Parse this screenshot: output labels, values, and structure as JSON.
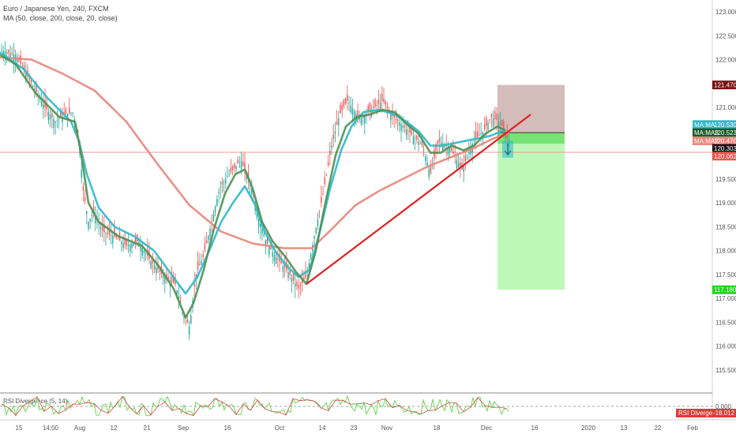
{
  "header": {
    "title": "Euro / Japanese Yen, 240, FXCM",
    "indicator": "MA (50, close, 200, close, 20, close)"
  },
  "rsi": {
    "label": "RSI Divergence (5, 14)",
    "tick_label": "0.000",
    "badge_label": "RSI Divergence",
    "badge_value": "-18.012"
  },
  "colors": {
    "ma50": "#2eb8c9",
    "ma200": "#e8867a",
    "ma20": "#4e8f52",
    "trendline": "#e0201f",
    "stop_zone": "#b88f8c",
    "target_zone": "#a8f5a0",
    "rsi_line": "#6fd65a",
    "rsi_line_down": "#d64a4a"
  },
  "chart_data": {
    "type": "line",
    "symbol": "EURJPY",
    "timeframe": "240",
    "y_axis": {
      "range": [
        115.3,
        123.15
      ],
      "ticks": [
        "123.000",
        "122.500",
        "122.000",
        "121.500",
        "121.000",
        "120.500",
        "120.000",
        "119.500",
        "119.000",
        "118.500",
        "118.000",
        "117.500",
        "117.000",
        "116.500",
        "116.000",
        "115.500"
      ]
    },
    "x_axis": {
      "ticks": [
        "15",
        "14:00",
        "Aug",
        "12",
        "21",
        "Sep",
        "16",
        "Oct",
        "14",
        "23",
        "Nov",
        "18",
        "Dec",
        "16",
        "2020",
        "13",
        "22",
        "Feb"
      ]
    },
    "price_path": [
      [
        0,
        122.2
      ],
      [
        20,
        122.1
      ],
      [
        40,
        121.5
      ],
      [
        55,
        121.05
      ],
      [
        70,
        120.7
      ],
      [
        82,
        120.85
      ],
      [
        92,
        120.9
      ],
      [
        100,
        120.4
      ],
      [
        105,
        119.3
      ],
      [
        112,
        118.6
      ],
      [
        118,
        118.8
      ],
      [
        130,
        118.4
      ],
      [
        145,
        118.3
      ],
      [
        160,
        118.1
      ],
      [
        175,
        118.2
      ],
      [
        190,
        117.8
      ],
      [
        205,
        117.5
      ],
      [
        222,
        117.3
      ],
      [
        232,
        116.7
      ],
      [
        240,
        116.4
      ],
      [
        248,
        117.5
      ],
      [
        258,
        117.9
      ],
      [
        268,
        118.6
      ],
      [
        278,
        119.3
      ],
      [
        290,
        119.6
      ],
      [
        305,
        119.9
      ],
      [
        318,
        119.35
      ],
      [
        328,
        118.65
      ],
      [
        338,
        118.15
      ],
      [
        350,
        117.85
      ],
      [
        365,
        117.55
      ],
      [
        378,
        117.2
      ],
      [
        388,
        117.45
      ],
      [
        398,
        118.3
      ],
      [
        408,
        119.1
      ],
      [
        420,
        120.2
      ],
      [
        430,
        120.85
      ],
      [
        440,
        121.15
      ],
      [
        455,
        120.75
      ],
      [
        470,
        120.95
      ],
      [
        485,
        121.15
      ],
      [
        495,
        120.85
      ],
      [
        505,
        120.7
      ],
      [
        520,
        120.45
      ],
      [
        535,
        120.2
      ],
      [
        545,
        119.6
      ],
      [
        555,
        120.3
      ],
      [
        570,
        120.15
      ],
      [
        585,
        119.7
      ],
      [
        600,
        120.3
      ],
      [
        612,
        120.5
      ],
      [
        622,
        120.8
      ],
      [
        632,
        120.7
      ],
      [
        640,
        120.5
      ],
      [
        645,
        120.2
      ]
    ],
    "series": [
      {
        "name": "MA:MA",
        "label": "120.530",
        "values": [
          [
            0,
            122.15
          ],
          [
            30,
            121.8
          ],
          [
            60,
            121.2
          ],
          [
            90,
            120.7
          ],
          [
            100,
            120.3
          ],
          [
            110,
            119.6
          ],
          [
            125,
            118.9
          ],
          [
            145,
            118.5
          ],
          [
            170,
            118.3
          ],
          [
            195,
            118.0
          ],
          [
            215,
            117.55
          ],
          [
            235,
            117.1
          ],
          [
            250,
            117.45
          ],
          [
            265,
            118.0
          ],
          [
            280,
            118.6
          ],
          [
            295,
            119.0
          ],
          [
            310,
            119.35
          ],
          [
            322,
            119.0
          ],
          [
            335,
            118.4
          ],
          [
            350,
            117.95
          ],
          [
            365,
            117.65
          ],
          [
            378,
            117.45
          ],
          [
            392,
            117.6
          ],
          [
            405,
            118.4
          ],
          [
            418,
            119.3
          ],
          [
            432,
            120.1
          ],
          [
            445,
            120.6
          ],
          [
            460,
            120.9
          ],
          [
            480,
            120.95
          ],
          [
            500,
            120.85
          ],
          [
            515,
            120.7
          ],
          [
            530,
            120.5
          ],
          [
            545,
            120.2
          ],
          [
            560,
            120.2
          ],
          [
            575,
            120.25
          ],
          [
            590,
            120.3
          ],
          [
            605,
            120.35
          ],
          [
            620,
            120.4
          ],
          [
            640,
            120.53
          ]
        ]
      },
      {
        "name": "MA:MA3",
        "label": "120.523",
        "values": [
          [
            0,
            122.1
          ],
          [
            20,
            121.9
          ],
          [
            45,
            121.3
          ],
          [
            75,
            120.8
          ],
          [
            95,
            120.7
          ],
          [
            103,
            120.0
          ],
          [
            112,
            119.0
          ],
          [
            125,
            118.6
          ],
          [
            150,
            118.3
          ],
          [
            180,
            118.1
          ],
          [
            200,
            117.7
          ],
          [
            220,
            117.2
          ],
          [
            235,
            116.6
          ],
          [
            245,
            116.9
          ],
          [
            258,
            117.6
          ],
          [
            270,
            118.4
          ],
          [
            285,
            119.2
          ],
          [
            298,
            119.6
          ],
          [
            310,
            119.7
          ],
          [
            320,
            119.3
          ],
          [
            332,
            118.6
          ],
          [
            345,
            118.2
          ],
          [
            360,
            117.9
          ],
          [
            375,
            117.55
          ],
          [
            388,
            117.3
          ],
          [
            400,
            118.0
          ],
          [
            412,
            119.0
          ],
          [
            425,
            120.0
          ],
          [
            438,
            120.6
          ],
          [
            452,
            120.8
          ],
          [
            468,
            120.85
          ],
          [
            485,
            120.95
          ],
          [
            500,
            120.9
          ],
          [
            515,
            120.65
          ],
          [
            530,
            120.45
          ],
          [
            545,
            120.05
          ],
          [
            558,
            120.05
          ],
          [
            572,
            120.2
          ],
          [
            587,
            120.1
          ],
          [
            600,
            120.2
          ],
          [
            615,
            120.45
          ],
          [
            630,
            120.6
          ],
          [
            640,
            120.52
          ]
        ]
      },
      {
        "name": "MA:MA2",
        "label": "120.470",
        "values": [
          [
            0,
            122.05
          ],
          [
            40,
            122.0
          ],
          [
            80,
            121.7
          ],
          [
            120,
            121.35
          ],
          [
            160,
            120.7
          ],
          [
            200,
            119.8
          ],
          [
            240,
            118.95
          ],
          [
            280,
            118.4
          ],
          [
            320,
            118.15
          ],
          [
            360,
            118.05
          ],
          [
            395,
            118.05
          ],
          [
            420,
            118.45
          ],
          [
            450,
            118.95
          ],
          [
            480,
            119.25
          ],
          [
            510,
            119.5
          ],
          [
            540,
            119.75
          ],
          [
            570,
            119.95
          ],
          [
            600,
            120.15
          ],
          [
            625,
            120.35
          ],
          [
            645,
            120.47
          ]
        ]
      }
    ],
    "trendline": {
      "from": [
        388,
        117.3
      ],
      "to": [
        672,
        120.85
      ]
    },
    "price_line": {
      "value": "120.303"
    },
    "stop_zone": {
      "top": "121.470",
      "bottom": "120.470",
      "x_from": 630,
      "x_to": 715
    },
    "target_zone": {
      "top": "120.470",
      "bottom": "117.180",
      "x_from": 630,
      "x_to": 715
    },
    "axis_badges": [
      {
        "label": "121.470",
        "value": 121.47,
        "color": "#7a1313"
      },
      {
        "label": "120.530",
        "value": 120.64,
        "color": "#2eb8c9",
        "prefix": "MA:MA"
      },
      {
        "label": "120.523",
        "value": 120.47,
        "color": "#1a5a26",
        "prefix": "MA:MA3"
      },
      {
        "label": "120.470",
        "value": 120.3,
        "color": "#e8867a",
        "prefix": "MA:MA2"
      },
      {
        "label": "120.303",
        "value": 120.14,
        "color": "#111111"
      },
      {
        "label": "120.062",
        "value": 119.98,
        "color": "#ef5350"
      },
      {
        "label": "117.180",
        "value": 117.18,
        "color": "#21d321"
      }
    ]
  }
}
